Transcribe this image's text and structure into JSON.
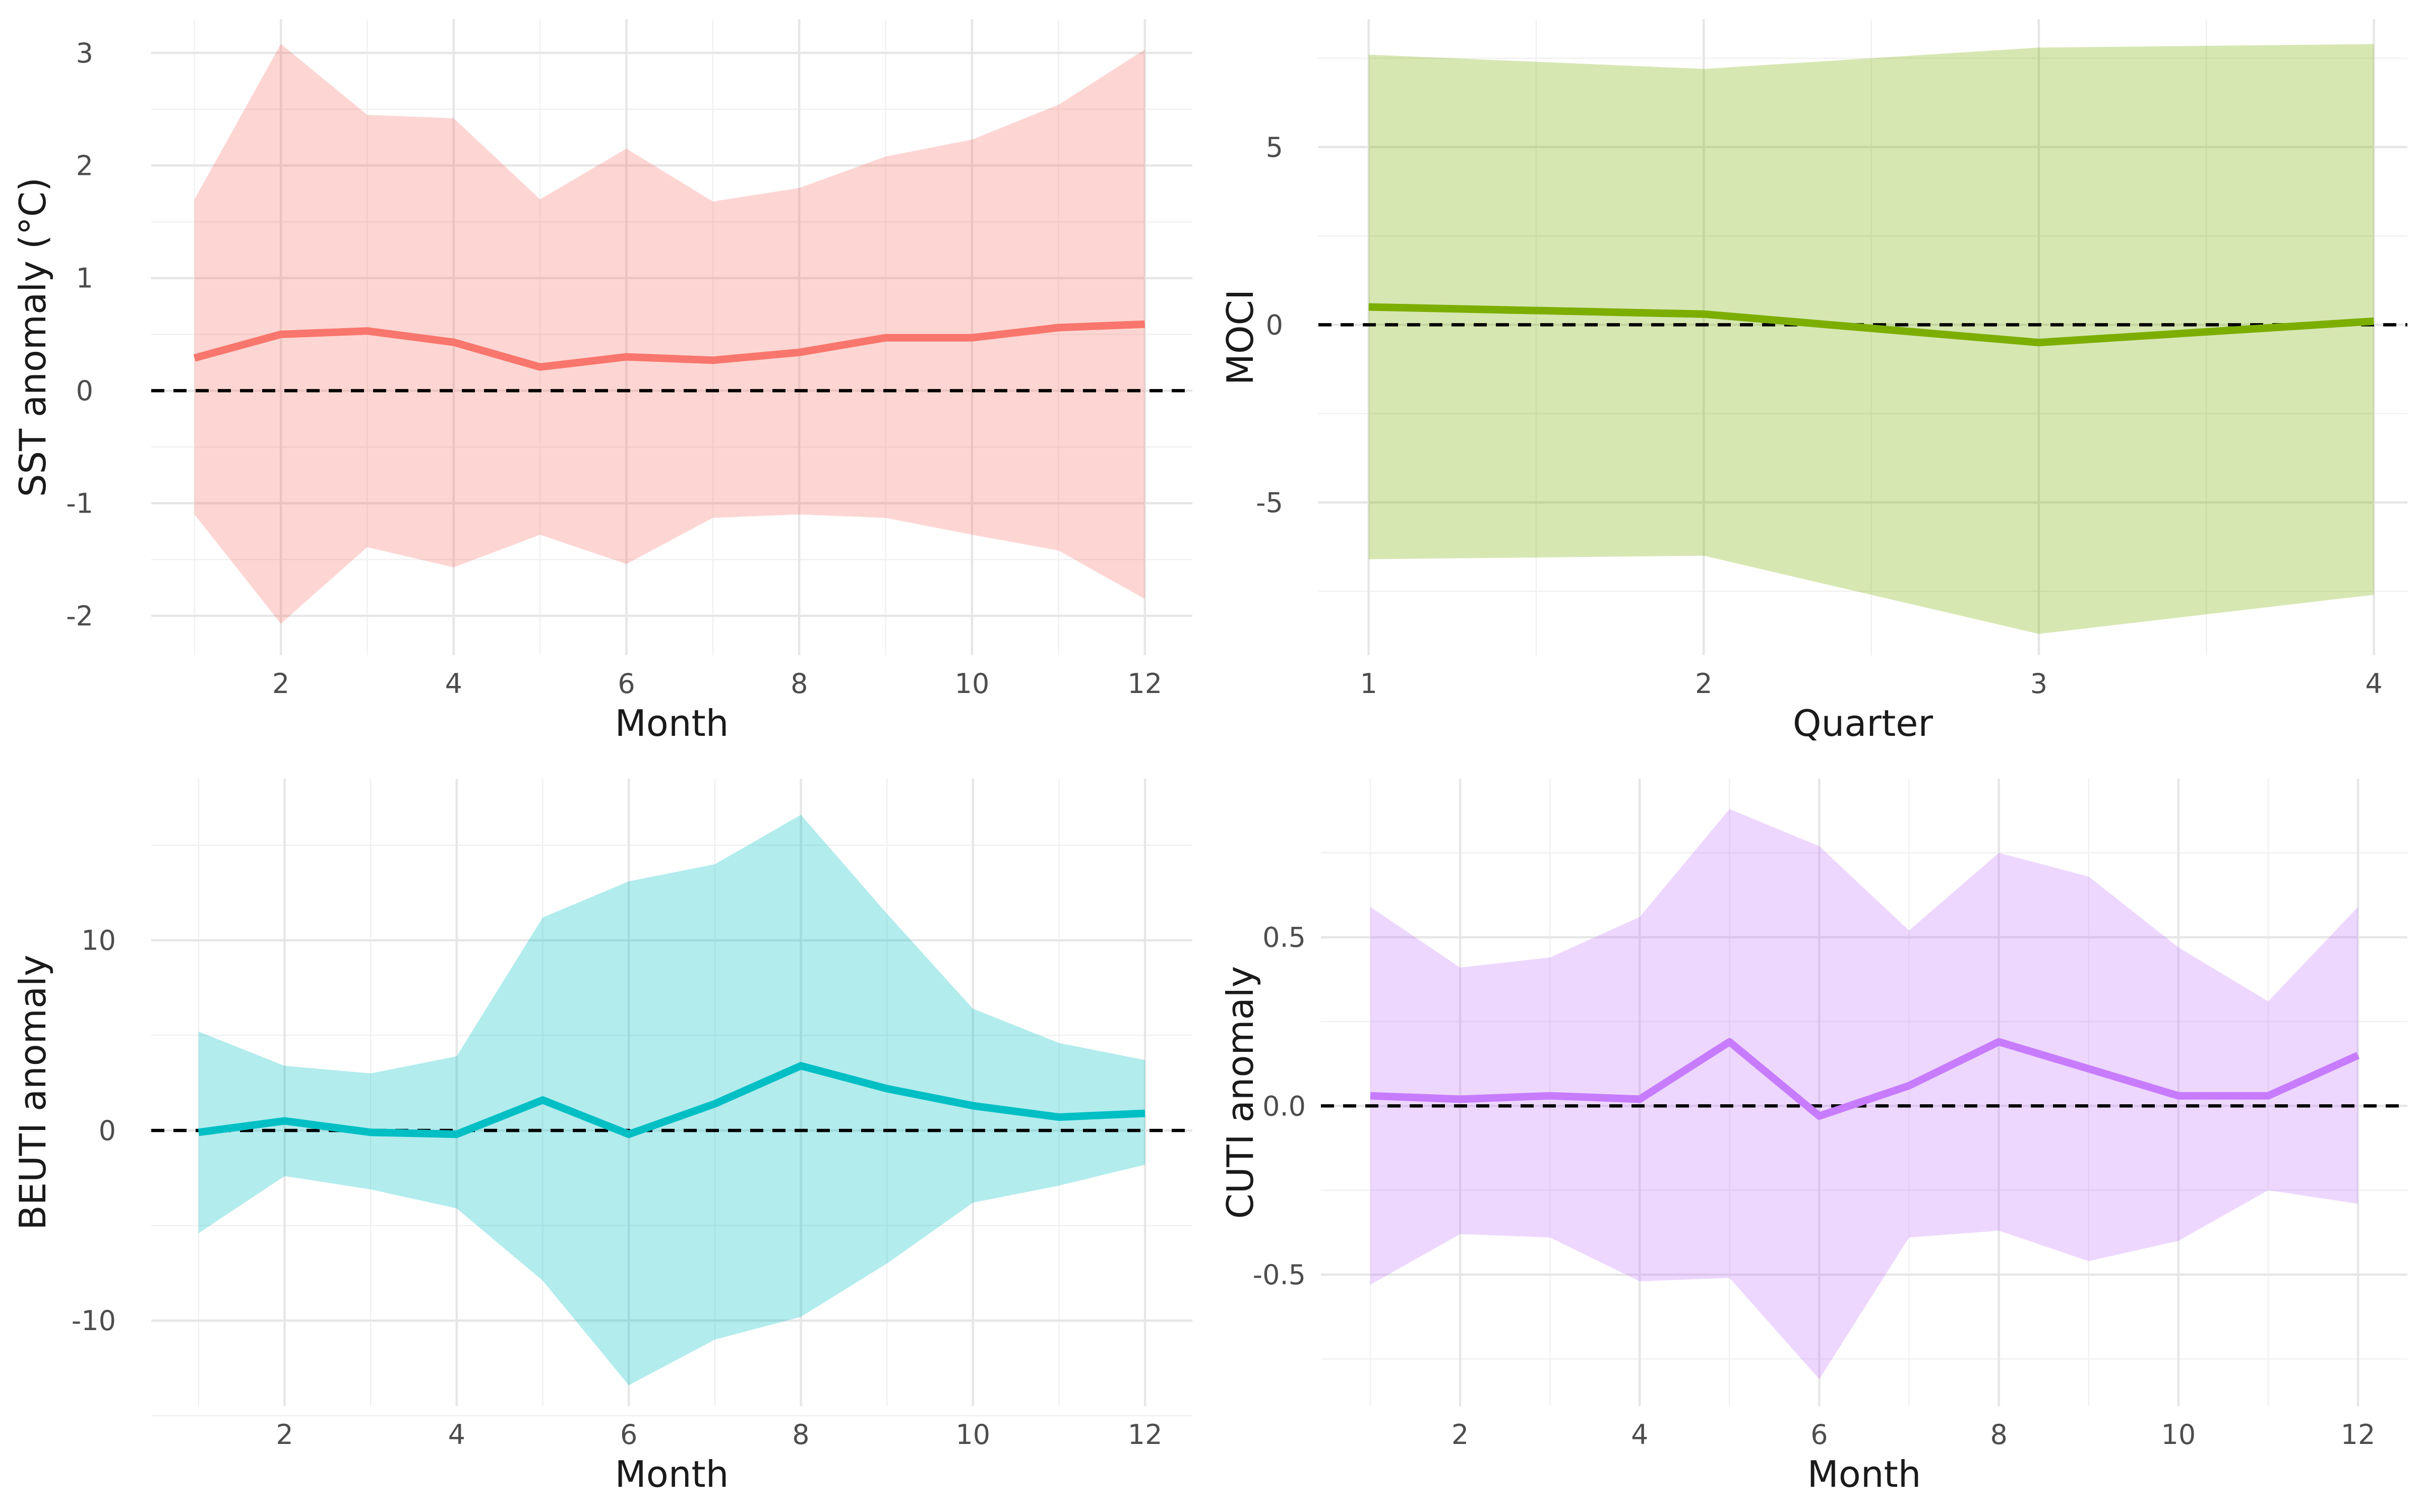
{
  "chart_data": [
    {
      "id": "sst",
      "type": "line",
      "band": "ribbon",
      "xlabel": "Month",
      "ylabel": "SST anomaly (°C)",
      "color": "#F8766D",
      "x": [
        1,
        2,
        3,
        4,
        5,
        6,
        7,
        8,
        9,
        10,
        11,
        12
      ],
      "xlim": [
        0.5,
        12.55
      ],
      "ylim": [
        -2.35,
        3.3
      ],
      "xticks": [
        2,
        4,
        6,
        8,
        10,
        12
      ],
      "xticklabels": [
        "2",
        "4",
        "6",
        "8",
        "10",
        "12"
      ],
      "xminor": [
        1,
        3,
        5,
        7,
        9,
        11
      ],
      "yticks": [
        -2,
        -1,
        0,
        1,
        2,
        3
      ],
      "yticklabels": [
        "-2",
        "-1",
        "0",
        "1",
        "2",
        "3"
      ],
      "yminor": [
        -1.5,
        -0.5,
        0.5,
        1.5,
        2.5
      ],
      "mean": [
        0.29,
        0.5,
        0.53,
        0.43,
        0.21,
        0.3,
        0.27,
        0.34,
        0.47,
        0.47,
        0.56,
        0.59
      ],
      "upper": [
        1.7,
        3.08,
        2.45,
        2.42,
        1.7,
        2.15,
        1.68,
        1.8,
        2.08,
        2.23,
        2.54,
        3.03
      ],
      "lower": [
        -1.1,
        -2.07,
        -1.39,
        -1.57,
        -1.28,
        -1.54,
        -1.13,
        -1.1,
        -1.13,
        -1.28,
        -1.42,
        -1.85
      ]
    },
    {
      "id": "moci",
      "type": "line",
      "band": "ribbon",
      "xlabel": "Quarter",
      "ylabel": "MOCI",
      "color": "#7CAE00",
      "x": [
        1,
        2,
        3,
        4
      ],
      "xlim": [
        0.85,
        4.1
      ],
      "ylim": [
        -9.3,
        8.6
      ],
      "xticks": [
        1,
        2,
        3,
        4
      ],
      "xticklabels": [
        "1",
        "2",
        "3",
        "4"
      ],
      "xminor": [
        1.5,
        2.5,
        3.5
      ],
      "yticks": [
        -5,
        0,
        5
      ],
      "yticklabels": [
        "-5",
        "0",
        "5"
      ],
      "yminor": [
        -7.5,
        -2.5,
        2.5,
        7.5
      ],
      "mean": [
        0.5,
        0.3,
        -0.5,
        0.1
      ],
      "upper": [
        7.6,
        7.2,
        7.8,
        7.9
      ],
      "lower": [
        -6.6,
        -6.5,
        -8.7,
        -7.6
      ]
    },
    {
      "id": "beuti",
      "type": "line",
      "band": "ribbon",
      "xlabel": "Month",
      "ylabel": "BEUTI anomaly",
      "color": "#00BFC4",
      "x": [
        1,
        2,
        3,
        4,
        5,
        6,
        7,
        8,
        9,
        10,
        11,
        12
      ],
      "xlim": [
        0.45,
        12.55
      ],
      "ylim": [
        -14.5,
        18.5
      ],
      "xticks": [
        2,
        4,
        6,
        8,
        10,
        12
      ],
      "xticklabels": [
        "2",
        "4",
        "6",
        "8",
        "10",
        "12"
      ],
      "xminor": [
        1,
        3,
        5,
        7,
        9,
        11
      ],
      "yticks": [
        -10,
        0,
        10
      ],
      "yticklabels": [
        "-10",
        "0",
        "10"
      ],
      "yminor": [
        -15,
        -5,
        5,
        15
      ],
      "mean": [
        -0.1,
        0.5,
        -0.1,
        -0.2,
        1.6,
        -0.2,
        1.4,
        3.4,
        2.2,
        1.3,
        0.7,
        0.9
      ],
      "upper": [
        5.2,
        3.4,
        3.0,
        3.9,
        11.2,
        13.1,
        14.0,
        16.6,
        11.4,
        6.4,
        4.6,
        3.7
      ],
      "lower": [
        -5.4,
        -2.4,
        -3.1,
        -4.1,
        -7.9,
        -13.4,
        -11.0,
        -9.8,
        -7.0,
        -3.8,
        -2.9,
        -1.8
      ]
    },
    {
      "id": "cuti",
      "type": "line",
      "band": "ribbon",
      "xlabel": "Month",
      "ylabel": "CUTI anomaly",
      "color": "#C77CFF",
      "x": [
        1,
        2,
        3,
        4,
        5,
        6,
        7,
        8,
        9,
        10,
        11,
        12
      ],
      "xlim": [
        0.45,
        12.55
      ],
      "ylim": [
        -0.89,
        0.97
      ],
      "xticks": [
        2,
        4,
        6,
        8,
        10,
        12
      ],
      "xticklabels": [
        "2",
        "4",
        "6",
        "8",
        "10",
        "12"
      ],
      "xminor": [
        1,
        3,
        5,
        7,
        9,
        11
      ],
      "yticks": [
        -0.5,
        0,
        0.5
      ],
      "yticklabels": [
        "-0.5",
        "0.0",
        "0.5"
      ],
      "yminor": [
        -0.75,
        -0.25,
        0.25,
        0.75
      ],
      "mean": [
        0.03,
        0.02,
        0.03,
        0.02,
        0.19,
        -0.03,
        0.06,
        0.19,
        0.11,
        0.03,
        0.03,
        0.15
      ],
      "upper": [
        0.59,
        0.41,
        0.44,
        0.56,
        0.88,
        0.77,
        0.52,
        0.75,
        0.68,
        0.47,
        0.31,
        0.59
      ],
      "lower": [
        -0.53,
        -0.38,
        -0.39,
        -0.52,
        -0.51,
        -0.81,
        -0.39,
        -0.37,
        -0.46,
        -0.4,
        -0.25,
        -0.29
      ]
    }
  ]
}
